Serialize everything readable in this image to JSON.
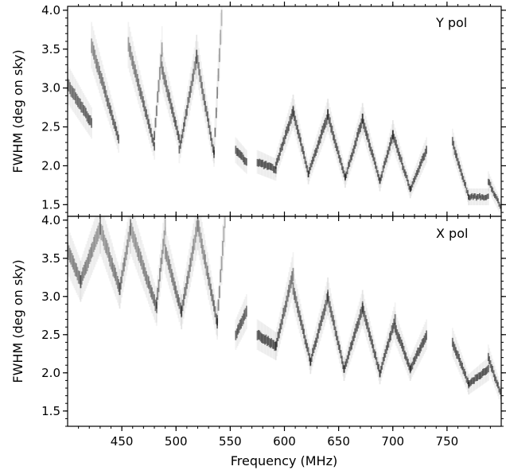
{
  "chart_data": [
    {
      "type": "scatter",
      "panel": "top",
      "title": "",
      "annotation": "Y pol",
      "xlabel": "",
      "ylabel": "FWHM (deg on sky)",
      "xlim": [
        400,
        800
      ],
      "ylim": [
        1.35,
        4.05
      ],
      "x_ticks": [
        450,
        500,
        550,
        600,
        650,
        700,
        750
      ],
      "y_ticks": [
        1.5,
        2.0,
        2.5,
        3.0,
        3.5,
        4.0
      ],
      "y_tick_labels": [
        "1.5",
        "2.0",
        "2.5",
        "3.0",
        "3.5",
        "4.0"
      ],
      "grid": false,
      "colormap": "greys (density)",
      "bands": [
        {
          "x": [
            400,
            422
          ],
          "y": [
            3.05,
            2.55
          ]
        },
        {
          "x": [
            422,
            447
          ],
          "y": [
            3.55,
            2.35
          ]
        },
        {
          "x": [
            456,
            480
          ],
          "y": [
            3.55,
            2.25
          ]
        },
        {
          "x": [
            480,
            487
          ],
          "y": [
            2.4,
            3.5
          ]
        },
        {
          "x": [
            487,
            503
          ],
          "y": [
            3.25,
            2.35
          ]
        },
        {
          "x": [
            503,
            519
          ],
          "y": [
            2.2,
            3.4
          ]
        },
        {
          "x": [
            519,
            535
          ],
          "y": [
            3.4,
            2.15
          ]
        },
        {
          "x": [
            535,
            542
          ],
          "y": [
            2.2,
            3.9
          ]
        },
        {
          "x": [
            555,
            565
          ],
          "y": [
            2.2,
            2.05
          ]
        },
        {
          "x": [
            575,
            592
          ],
          "y": [
            2.05,
            1.95
          ]
        },
        {
          "x": [
            592,
            608
          ],
          "y": [
            2.0,
            2.7
          ]
        },
        {
          "x": [
            608,
            622
          ],
          "y": [
            2.7,
            1.9
          ]
        },
        {
          "x": [
            622,
            640
          ],
          "y": [
            1.9,
            2.65
          ]
        },
        {
          "x": [
            640,
            656
          ],
          "y": [
            2.65,
            1.85
          ]
        },
        {
          "x": [
            656,
            672
          ],
          "y": [
            1.85,
            2.6
          ]
        },
        {
          "x": [
            672,
            688
          ],
          "y": [
            2.6,
            1.8
          ]
        },
        {
          "x": [
            688,
            700
          ],
          "y": [
            1.8,
            2.4
          ]
        },
        {
          "x": [
            700,
            716
          ],
          "y": [
            2.4,
            1.7
          ]
        },
        {
          "x": [
            716,
            731
          ],
          "y": [
            1.7,
            2.2
          ]
        },
        {
          "x": [
            755,
            770
          ],
          "y": [
            2.3,
            1.6
          ]
        },
        {
          "x": [
            770,
            788
          ],
          "y": [
            1.6,
            1.6
          ]
        },
        {
          "x": [
            788,
            800
          ],
          "y": [
            1.8,
            1.45
          ]
        }
      ]
    },
    {
      "type": "scatter",
      "panel": "bottom",
      "title": "",
      "annotation": "X pol",
      "xlabel": "Frequency (MHz)",
      "ylabel": "FWHM (deg on sky)",
      "xlim": [
        400,
        800
      ],
      "ylim": [
        1.3,
        4.05
      ],
      "x_ticks": [
        450,
        500,
        550,
        600,
        650,
        700,
        750
      ],
      "x_tick_labels": [
        "450",
        "500",
        "550",
        "600",
        "650",
        "700",
        "750"
      ],
      "y_ticks": [
        1.5,
        2.0,
        2.5,
        3.0,
        3.5,
        4.0
      ],
      "y_tick_labels": [
        "1.5",
        "2.0",
        "2.5",
        "3.0",
        "3.5",
        "4.0"
      ],
      "grid": false,
      "colormap": "greys (density)",
      "bands": [
        {
          "x": [
            400,
            412
          ],
          "y": [
            3.6,
            3.2
          ]
        },
        {
          "x": [
            412,
            430
          ],
          "y": [
            3.2,
            3.9
          ]
        },
        {
          "x": [
            430,
            448
          ],
          "y": [
            3.9,
            3.1
          ]
        },
        {
          "x": [
            448,
            458
          ],
          "y": [
            3.1,
            3.9
          ]
        },
        {
          "x": [
            458,
            482
          ],
          "y": [
            3.9,
            2.85
          ]
        },
        {
          "x": [
            482,
            490
          ],
          "y": [
            2.9,
            3.9
          ]
        },
        {
          "x": [
            490,
            505
          ],
          "y": [
            3.6,
            2.8
          ]
        },
        {
          "x": [
            505,
            520
          ],
          "y": [
            2.8,
            3.95
          ]
        },
        {
          "x": [
            520,
            538
          ],
          "y": [
            3.95,
            2.65
          ]
        },
        {
          "x": [
            538,
            545
          ],
          "y": [
            2.7,
            4.0
          ]
        },
        {
          "x": [
            555,
            565
          ],
          "y": [
            2.5,
            2.8
          ]
        },
        {
          "x": [
            575,
            592
          ],
          "y": [
            2.5,
            2.35
          ]
        },
        {
          "x": [
            592,
            608
          ],
          "y": [
            2.35,
            3.3
          ]
        },
        {
          "x": [
            608,
            624
          ],
          "y": [
            3.1,
            2.15
          ]
        },
        {
          "x": [
            624,
            640
          ],
          "y": [
            2.15,
            3.0
          ]
        },
        {
          "x": [
            640,
            655
          ],
          "y": [
            3.0,
            2.05
          ]
        },
        {
          "x": [
            655,
            672
          ],
          "y": [
            2.05,
            2.85
          ]
        },
        {
          "x": [
            672,
            688
          ],
          "y": [
            2.85,
            2.0
          ]
        },
        {
          "x": [
            688,
            702
          ],
          "y": [
            2.0,
            2.7
          ]
        },
        {
          "x": [
            702,
            716
          ],
          "y": [
            2.6,
            2.05
          ]
        },
        {
          "x": [
            716,
            731
          ],
          "y": [
            2.05,
            2.5
          ]
        },
        {
          "x": [
            755,
            770
          ],
          "y": [
            2.4,
            1.85
          ]
        },
        {
          "x": [
            770,
            788
          ],
          "y": [
            1.85,
            2.05
          ]
        },
        {
          "x": [
            788,
            800
          ],
          "y": [
            2.2,
            1.7
          ]
        }
      ]
    }
  ]
}
